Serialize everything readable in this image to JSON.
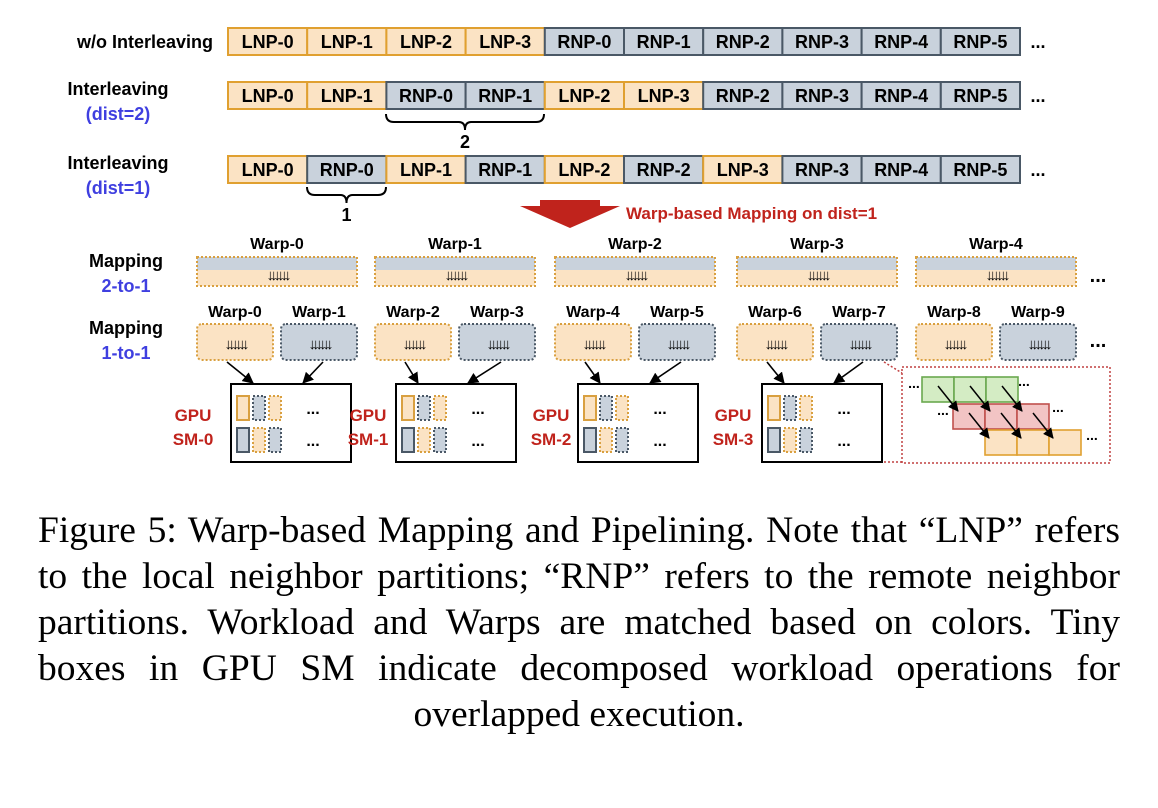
{
  "rows": [
    {
      "label": [
        "w/o Interleaving"
      ],
      "items": [
        "LNP-0",
        "LNP-1",
        "LNP-2",
        "LNP-3",
        "RNP-0",
        "RNP-1",
        "RNP-2",
        "RNP-3",
        "RNP-4",
        "RNP-5"
      ]
    },
    {
      "label": [
        "Interleaving",
        "(dist=2)"
      ],
      "items": [
        "LNP-0",
        "LNP-1",
        "RNP-0",
        "RNP-1",
        "LNP-2",
        "LNP-3",
        "RNP-2",
        "RNP-3",
        "RNP-4",
        "RNP-5"
      ],
      "brace": "2"
    },
    {
      "label": [
        "Interleaving",
        "(dist=1)"
      ],
      "items": [
        "LNP-0",
        "RNP-0",
        "LNP-1",
        "RNP-1",
        "LNP-2",
        "RNP-2",
        "LNP-3",
        "RNP-3",
        "RNP-4",
        "RNP-5"
      ],
      "brace": "1"
    }
  ],
  "ellipsis": "...",
  "arrow_label": "Warp-based Mapping on dist=1",
  "mapping_2to1": {
    "label": [
      "Mapping",
      "2-to-1"
    ],
    "warps": [
      "Warp-0",
      "Warp-1",
      "Warp-2",
      "Warp-3",
      "Warp-4"
    ]
  },
  "mapping_1to1": {
    "label": [
      "Mapping",
      "1-to-1"
    ],
    "warps": [
      "Warp-0",
      "Warp-1",
      "Warp-2",
      "Warp-3",
      "Warp-4",
      "Warp-5",
      "Warp-6",
      "Warp-7",
      "Warp-8",
      "Warp-9"
    ]
  },
  "sms": [
    {
      "label": [
        "GPU",
        "SM-0"
      ]
    },
    {
      "label": [
        "GPU",
        "SM-1"
      ]
    },
    {
      "label": [
        "GPU",
        "SM-2"
      ]
    },
    {
      "label": [
        "GPU",
        "SM-3"
      ]
    }
  ],
  "arrow_glyphs": "↓↓↓↓↓↓",
  "colors": {
    "lnp_fill": "#fbe3c4",
    "lnp_stroke": "#e0a030",
    "rnp_fill": "#c9d2dc",
    "rnp_stroke": "#4a5866",
    "accent_red": "#c0231c",
    "accent_blue": "#3f3fe0",
    "pipe_green": "#d4ecc4",
    "pipe_red": "#f2c4c4",
    "pipe_orange": "#fbe3c4"
  },
  "caption": "Figure 5: Warp-based Mapping and Pipelining. Note that “LNP” refers to the local neighbor partitions; “RNP” refers to the remote neighbor partitions. Workload and Warps are matched based on colors. Tiny boxes in GPU SM indicate decomposed workload operations for overlapped execution."
}
